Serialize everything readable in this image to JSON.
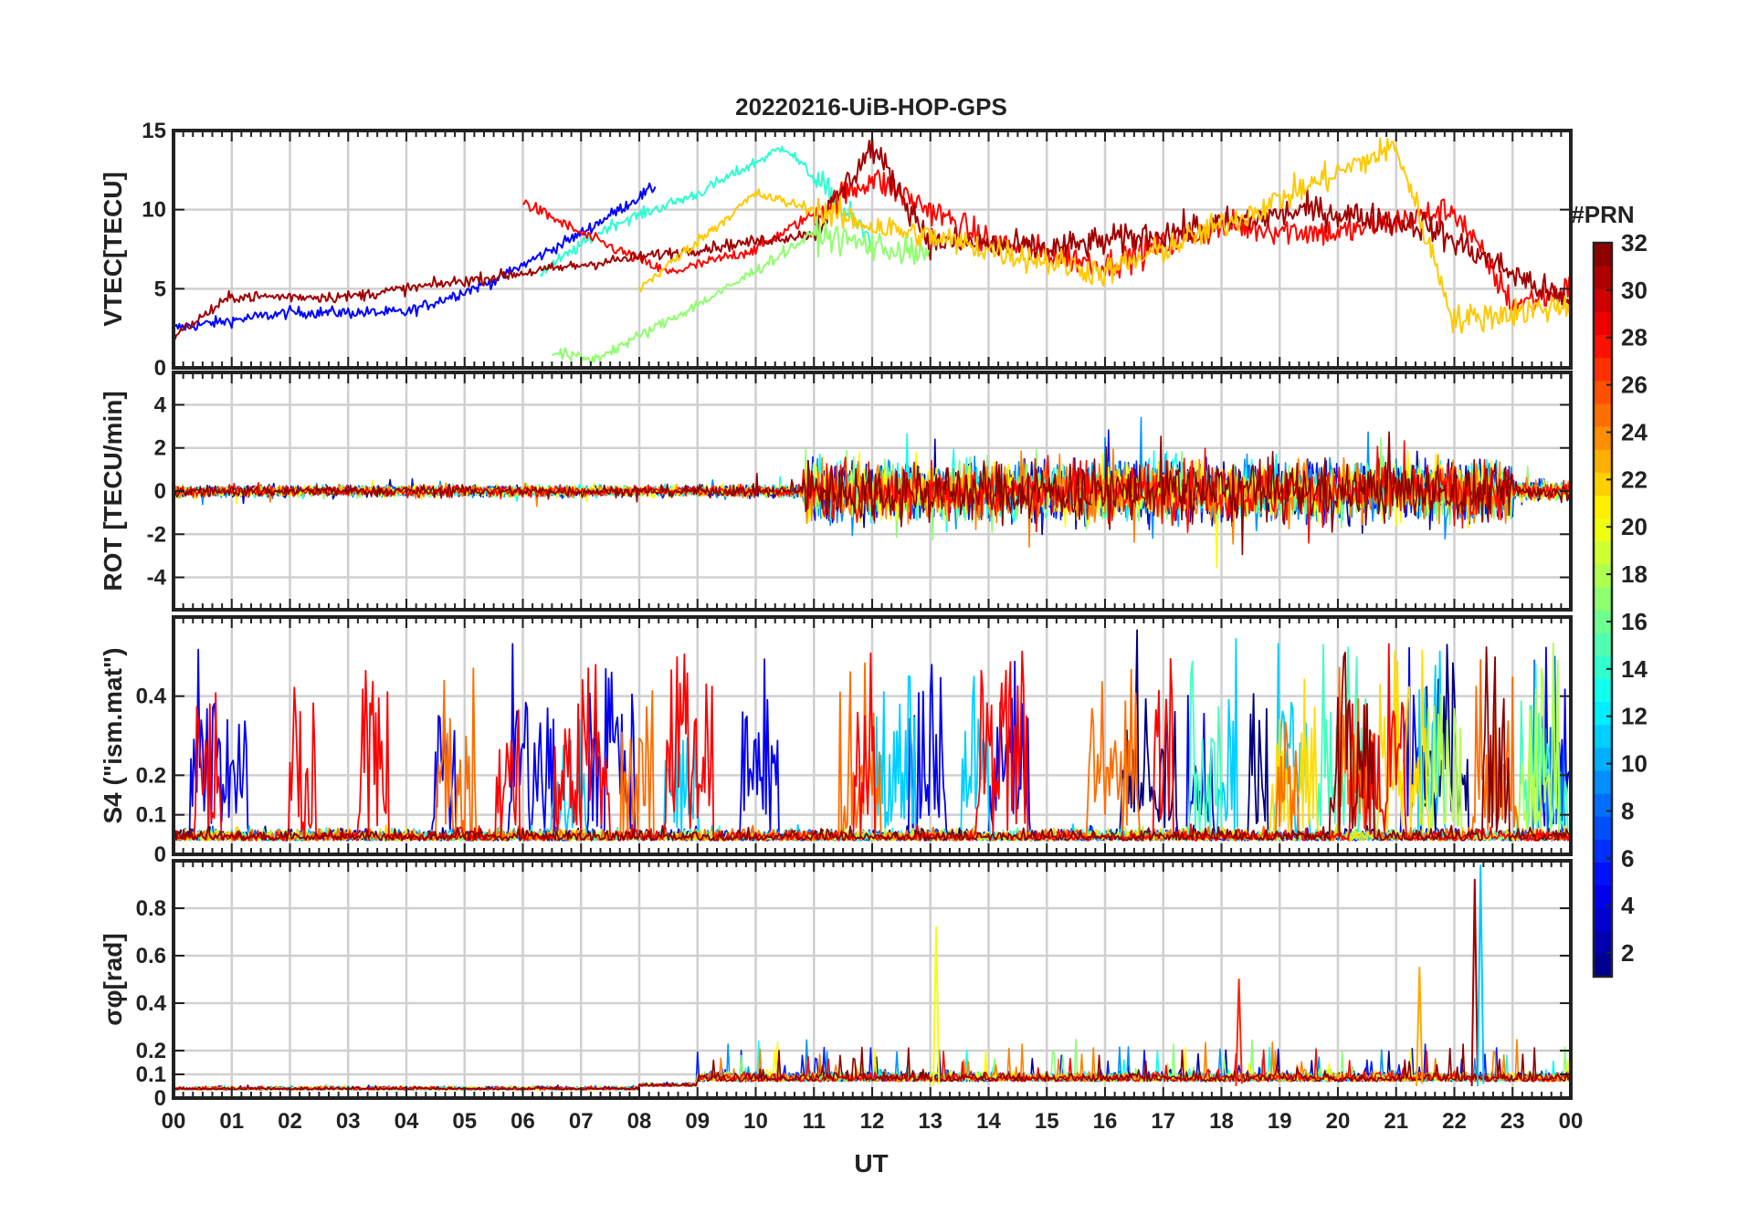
{
  "chart_data": {
    "type": "line",
    "title": "20220216-UiB-HOP-GPS",
    "xlabel": "UT",
    "xlim": [
      0,
      24
    ],
    "x_tick_labels": [
      "00",
      "01",
      "02",
      "03",
      "04",
      "05",
      "06",
      "07",
      "08",
      "09",
      "10",
      "11",
      "12",
      "13",
      "14",
      "15",
      "16",
      "17",
      "18",
      "19",
      "20",
      "21",
      "22",
      "23",
      "00"
    ],
    "colorbar": {
      "title": "#PRN",
      "range": [
        1,
        32
      ],
      "tick_labels": [
        "2",
        "4",
        "6",
        "8",
        "10",
        "12",
        "14",
        "16",
        "18",
        "20",
        "22",
        "24",
        "26",
        "28",
        "30",
        "32"
      ],
      "colormap": [
        "#00007f",
        "#0000ff",
        "#007fff",
        "#00ffff",
        "#7fff7f",
        "#ffff00",
        "#ff7f00",
        "#ff0000",
        "#7f0000"
      ]
    },
    "panels": [
      {
        "id": "vtec",
        "ylabel": "VTEC[TECU]",
        "ylim": [
          0,
          15
        ],
        "yticks": [
          0,
          5,
          10,
          15
        ],
        "ytick_labels": [
          "0",
          "5",
          "10",
          "15"
        ],
        "description_series": [
          {
            "prn": 5,
            "x": [
              0,
              2,
              4,
              5.5,
              7,
              8.3
            ],
            "y": [
              2.5,
              3.5,
              3.5,
              5.5,
              8.5,
              11.5
            ]
          },
          {
            "prn": 14,
            "x": [
              6.3,
              7.5,
              9,
              10.5,
              12
            ],
            "y": [
              6,
              9,
              11,
              14,
              8
            ]
          },
          {
            "prn": 28,
            "x": [
              6,
              7,
              8.5,
              10,
              12,
              14,
              16,
              18,
              20,
              22,
              23,
              24
            ],
            "y": [
              10.5,
              8.5,
              6,
              7.5,
              12,
              8,
              6.5,
              9,
              8.5,
              10,
              4,
              5
            ]
          },
          {
            "prn": 31,
            "x": [
              0,
              1,
              3,
              11,
              12,
              13,
              15,
              17,
              19.5,
              21.5,
              24
            ],
            "y": [
              2,
              4.5,
              4.5,
              8.5,
              14,
              8,
              7.5,
              8.5,
              10,
              9,
              4
            ]
          },
          {
            "prn": 22,
            "x": [
              8,
              10,
              12,
              14,
              16,
              18,
              21,
              22,
              24
            ],
            "y": [
              5,
              11,
              9,
              7.5,
              6,
              9,
              14,
              3,
              4
            ]
          },
          {
            "prn": 17,
            "x": [
              6.5,
              7.2,
              8,
              9.5,
              11,
              13
            ],
            "y": [
              1,
              0.5,
              2,
              5,
              8.5,
              7
            ]
          }
        ]
      },
      {
        "id": "rot",
        "ylabel": "ROT [TECU/min]",
        "ylim": [
          -5.5,
          5.5
        ],
        "yticks": [
          -4,
          -2,
          0,
          2,
          4
        ],
        "ytick_labels": [
          "-4",
          "-2",
          "0",
          "2",
          "4"
        ],
        "description": "noise around 0; amplitude about 0.5 before 11 UT, 2-5 between 11 and 23 UT"
      },
      {
        "id": "s4",
        "ylabel": "S4 (\"ism.mat\")",
        "ylim": [
          0,
          0.6
        ],
        "yticks": [
          0,
          0.1,
          0.2,
          0.4
        ],
        "ytick_labels": [
          "0",
          "0.1",
          "0.2",
          "0.4"
        ],
        "description": "background about 0.05; bursts up to 0.6 spread through the day"
      },
      {
        "id": "sigma",
        "ylabel": "σφ[rad]",
        "ylim": [
          0,
          1.0
        ],
        "yticks": [
          0,
          0.1,
          0.2,
          0.4,
          0.6,
          0.8
        ],
        "ytick_labels": [
          "0",
          "0.1",
          "0.2",
          "0.4",
          "0.6",
          "0.8"
        ],
        "spikes": [
          {
            "x": 13.1,
            "y": 0.72,
            "prn": 20
          },
          {
            "x": 18.3,
            "y": 0.5,
            "prn": 27
          },
          {
            "x": 21.4,
            "y": 0.55,
            "prn": 23
          },
          {
            "x": 22.35,
            "y": 0.92,
            "prn": 31
          },
          {
            "x": 22.45,
            "y": 0.98,
            "prn": 11
          }
        ]
      }
    ]
  }
}
